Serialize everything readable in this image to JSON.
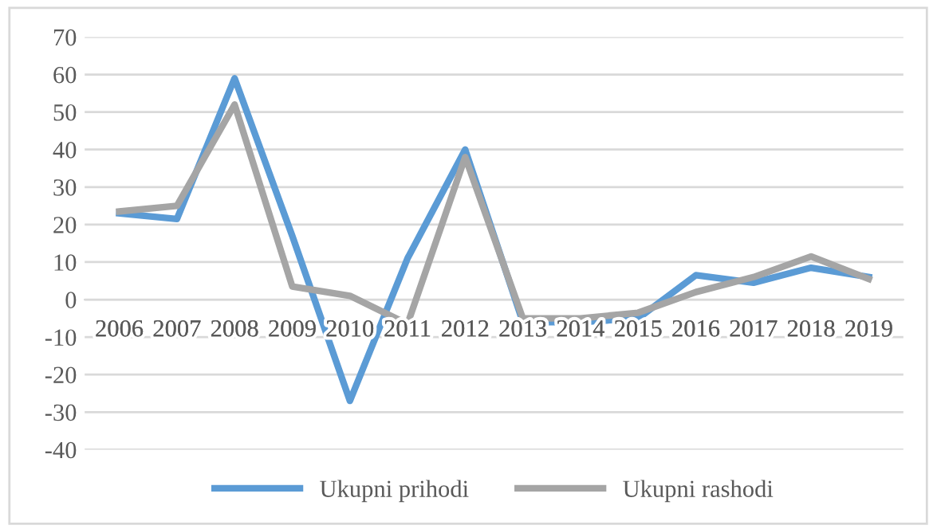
{
  "chart_data": {
    "type": "line",
    "categories": [
      "2006",
      "2007",
      "2008",
      "2009",
      "2010",
      "2011",
      "2012",
      "2013",
      "2014",
      "2015",
      "2016",
      "2017",
      "2018",
      "2019"
    ],
    "series": [
      {
        "name": "Ukupni prihodi",
        "color": "#5b9bd5",
        "values": [
          23,
          21.5,
          59,
          17,
          -27,
          11,
          40,
          -6,
          -6,
          -5,
          6.5,
          4.5,
          8.5,
          6
        ]
      },
      {
        "name": "Ukupni rashodi",
        "color": "#a5a5a5",
        "values": [
          23.5,
          25,
          52,
          3.5,
          1,
          -6.5,
          38,
          -5,
          -5,
          -3.5,
          2,
          6,
          11.5,
          5.5
        ]
      }
    ],
    "ylim": [
      -40,
      70
    ],
    "yticks": [
      -40,
      -30,
      -20,
      -10,
      0,
      10,
      20,
      30,
      40,
      50,
      60,
      70
    ],
    "grid": "y",
    "legend": "bottom",
    "marker": "none",
    "line_style": "solid"
  }
}
